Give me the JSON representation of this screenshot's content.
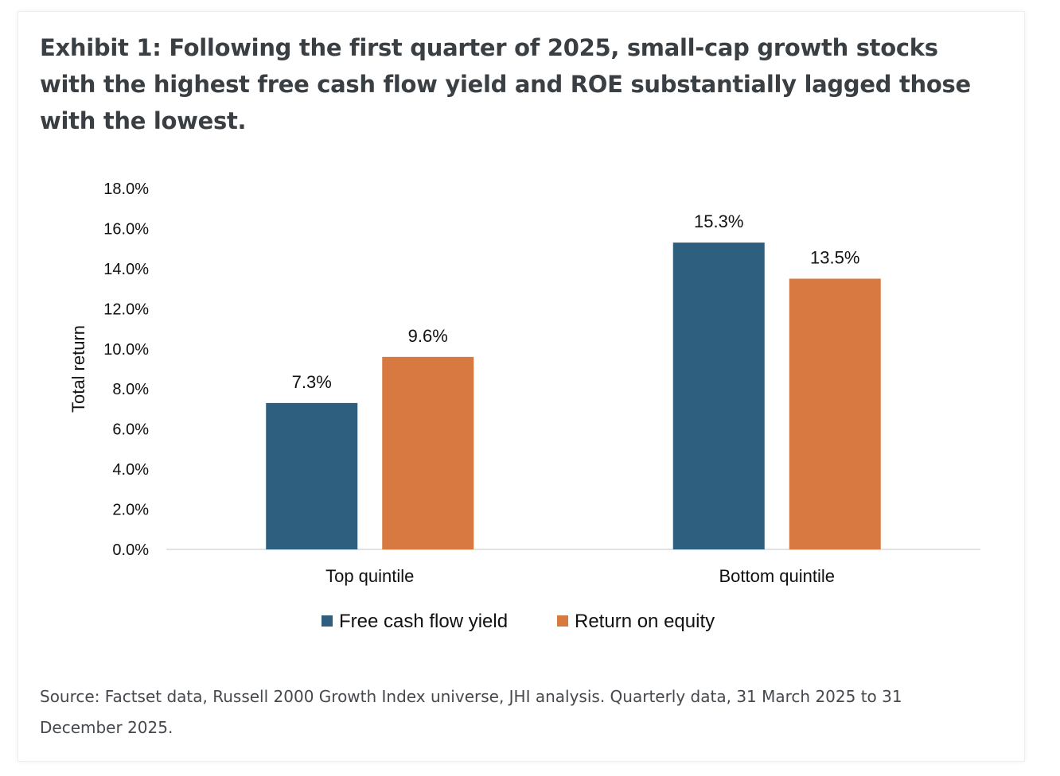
{
  "title": "Exhibit 1: Following the first quarter of 2025, small-cap growth stocks with the highest free cash flow yield and ROE substantially lagged those with the lowest.",
  "source": "Source: Factset data, Russell 2000 Growth Index universe, JHI analysis. Quarterly data, 31 March 2025 to 31 December 2025.",
  "chart_data": {
    "type": "bar",
    "categories": [
      "Top quintile",
      "Bottom quintile"
    ],
    "series": [
      {
        "name": "Free cash flow yield",
        "values": [
          7.3,
          15.3
        ],
        "labels": [
          "7.3%",
          "15.3%"
        ],
        "color": "#2e5f7f"
      },
      {
        "name": "Return on equity",
        "values": [
          9.6,
          13.5
        ],
        "labels": [
          "9.6%",
          "13.5%"
        ],
        "color": "#d97942"
      }
    ],
    "ylabel": "Total return",
    "ylim": [
      0,
      18
    ],
    "yticks": [
      0,
      2,
      4,
      6,
      8,
      10,
      12,
      14,
      16,
      18
    ],
    "ytick_labels": [
      "0.0%",
      "2.0%",
      "4.0%",
      "6.0%",
      "8.0%",
      "10.0%",
      "12.0%",
      "14.0%",
      "16.0%",
      "18.0%"
    ],
    "grid": false,
    "legend": "bottom"
  }
}
